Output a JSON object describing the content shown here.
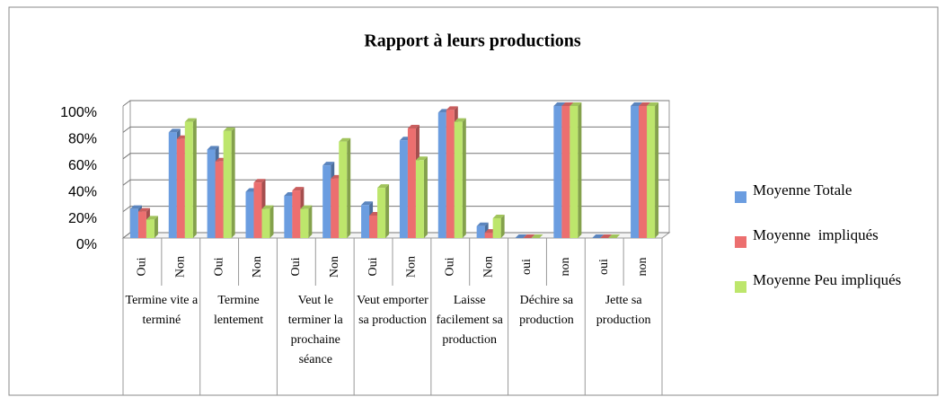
{
  "chart_data": {
    "type": "bar3d",
    "title": "Rapport à leurs productions",
    "groups": [
      "Termine vite a terminé",
      "Termine lentement",
      "Veut le terminer la prochaine séance",
      "Veut emporter sa production",
      "Laisse facilement sa production",
      "Déchire sa production",
      "Jette sa production"
    ],
    "categories": [
      "Oui",
      "Non",
      "Oui",
      "Non",
      "Oui",
      "Non",
      "Oui",
      "Non",
      "Oui",
      "Non",
      "oui",
      "non",
      "oui",
      "non"
    ],
    "series": [
      {
        "name": "Moyenne Totale",
        "color": "#6b9de0",
        "values": [
          22,
          80,
          67,
          35,
          32,
          55,
          25,
          74,
          95,
          9,
          0,
          100,
          0,
          100
        ]
      },
      {
        "name": "Moyenne  impliqués",
        "color": "#ec6f6f",
        "values": [
          20,
          75,
          58,
          42,
          36,
          45,
          17,
          83,
          97,
          4,
          0,
          100,
          0,
          100
        ]
      },
      {
        "name": "Moyenne Peu impliqués",
        "color": "#bde66c",
        "values": [
          14,
          88,
          81,
          22,
          22,
          73,
          38,
          59,
          88,
          15,
          0,
          100,
          0,
          100
        ]
      }
    ],
    "ylim": [
      0,
      100
    ],
    "yticks": [
      {
        "value": 0,
        "label": "0%"
      },
      {
        "value": 20,
        "label": "20%"
      },
      {
        "value": 40,
        "label": "40%"
      },
      {
        "value": 60,
        "label": "60%"
      },
      {
        "value": 80,
        "label": "80%"
      },
      {
        "value": 100,
        "label": "100%"
      }
    ],
    "grid": true,
    "legend": "right"
  }
}
